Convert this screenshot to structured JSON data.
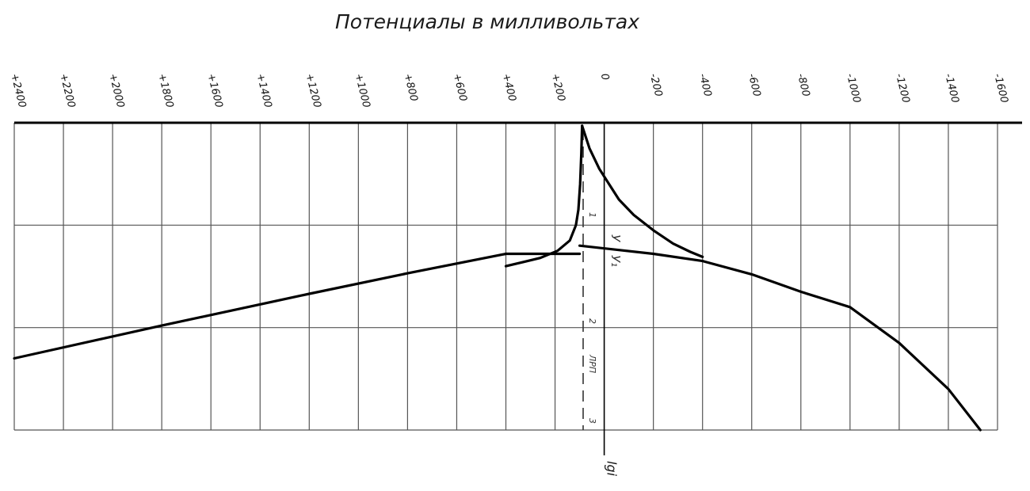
{
  "chart_data": {
    "type": "line",
    "title": "Потенциалы в милливольтах",
    "xlabel": "",
    "ylabel": "lgi",
    "x_ticks": [
      "+2400",
      "+2200",
      "+2000",
      "+1800",
      "+1600",
      "+1400",
      "+1200",
      "+1000",
      "+800",
      "+600",
      "+400",
      "+200",
      "0",
      "-200",
      "-400",
      "-600",
      "-800",
      "-1000",
      "-1200",
      "-1400",
      "-1600"
    ],
    "xlim": [
      2400,
      -1600
    ],
    "ylim": [
      0,
      3
    ],
    "grid": true,
    "axis_markers": [
      "1",
      "2",
      "3"
    ],
    "annotations": [
      "У",
      "У₁",
      "ЛРП"
    ],
    "series": [
      {
        "x": [
          90,
          93,
          98,
          105,
          115,
          140,
          190,
          260,
          330,
          400
        ],
        "y": [
          0.03,
          0.3,
          0.6,
          0.85,
          1.0,
          1.15,
          1.25,
          1.32,
          1.36,
          1.4
        ]
      },
      {
        "x": [
          90,
          60,
          20,
          -20,
          -60,
          -120,
          -200,
          -280,
          -350,
          -400
        ],
        "y": [
          0.03,
          0.25,
          0.45,
          0.6,
          0.75,
          0.9,
          1.05,
          1.18,
          1.26,
          1.31
        ]
      },
      {
        "x": [
          2400,
          1800,
          1200,
          800,
          400,
          100
        ],
        "y": [
          2.3,
          1.98,
          1.67,
          1.47,
          1.28,
          1.28
        ]
      },
      {
        "x": [
          100,
          -200,
          -400,
          -600,
          -800,
          -1000,
          -1200,
          -1400,
          -1530
        ],
        "y": [
          1.2,
          1.28,
          1.35,
          1.48,
          1.65,
          1.8,
          2.15,
          2.6,
          3.0
        ]
      }
    ]
  }
}
